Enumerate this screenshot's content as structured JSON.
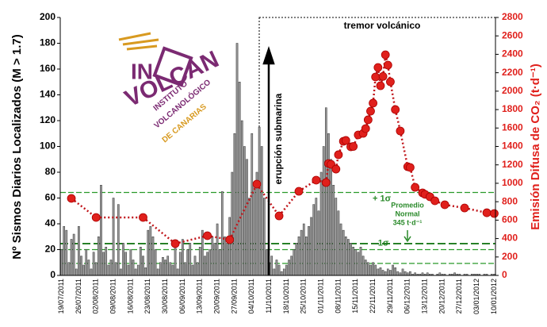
{
  "chart_data": {
    "type": "bar_line",
    "y_label": "Nº Sismos Diarios Localizados (M > 1.7)",
    "y2_label": "Emisión Difusa de CO₂ (t·d⁻¹)",
    "categories": [
      "19/07/2011",
      null,
      null,
      null,
      null,
      null,
      null,
      "26/07/2011",
      null,
      null,
      null,
      null,
      null,
      null,
      "02/08/2011",
      null,
      null,
      null,
      null,
      null,
      null,
      "09/08/2011",
      null,
      null,
      null,
      null,
      null,
      null,
      "16/08/2011",
      null,
      null,
      null,
      null,
      null,
      null,
      "23/08/2011",
      null,
      null,
      null,
      null,
      null,
      null,
      "30/08/2011",
      null,
      null,
      null,
      null,
      null,
      null,
      "06/09/2011",
      null,
      null,
      null,
      null,
      null,
      null,
      "13/09/2011",
      null,
      null,
      null,
      null,
      null,
      null,
      "20/09/2011",
      null,
      null,
      null,
      null,
      null,
      null,
      "27/09/2011",
      null,
      null,
      null,
      null,
      null,
      null,
      "04/10/2011",
      null,
      null,
      null,
      null,
      null,
      null,
      "11/10/2011",
      null,
      null,
      null,
      null,
      null,
      null,
      "18/10/2011",
      null,
      null,
      null,
      null,
      null,
      null,
      "25/10/2011",
      null,
      null,
      null,
      null,
      null,
      null,
      "01/11/2011",
      null,
      null,
      null,
      null,
      null,
      null,
      "08/11/2011",
      null,
      null,
      null,
      null,
      null,
      null,
      "15/11/2011",
      null,
      null,
      null,
      null,
      null,
      null,
      "22/11/2011",
      null,
      null,
      null,
      null,
      null,
      null,
      "29/11/2011",
      null,
      null,
      null,
      null,
      null,
      null,
      "06/12/2011",
      null,
      null,
      null,
      null,
      null,
      null,
      "13/12/2011",
      null,
      null,
      null,
      null,
      null,
      null,
      "20/12/2011",
      null,
      null,
      null,
      null,
      null,
      null,
      "27/12/2011",
      null,
      null,
      null,
      null,
      null,
      null,
      "03/01/2012",
      null,
      null,
      null,
      null,
      null,
      null,
      "10/01/2012"
    ],
    "series": [
      {
        "color": "#9a9a9a",
        "kind": "bar",
        "values": [
          20,
          38,
          35,
          10,
          28,
          32,
          5,
          38,
          15,
          8,
          20,
          12,
          5,
          18,
          10,
          30,
          70,
          18,
          22,
          8,
          12,
          60,
          10,
          55,
          5,
          25,
          18,
          8,
          20,
          12,
          5,
          8,
          22,
          15,
          6,
          35,
          38,
          30,
          20,
          5,
          10,
          14,
          12,
          15,
          10,
          8,
          22,
          5,
          18,
          28,
          10,
          20,
          25,
          8,
          15,
          10,
          22,
          35,
          15,
          18,
          20,
          30,
          25,
          40,
          20,
          65,
          30,
          25,
          45,
          80,
          110,
          180,
          150,
          120,
          100,
          90,
          60,
          110,
          70,
          80,
          115,
          100,
          60,
          20,
          10,
          15,
          5,
          12,
          8,
          3,
          5,
          8,
          12,
          15,
          20,
          25,
          30,
          35,
          40,
          30,
          38,
          45,
          55,
          60,
          50,
          80,
          100,
          130,
          110,
          90,
          70,
          60,
          50,
          40,
          35,
          30,
          28,
          25,
          22,
          20,
          18,
          22,
          15,
          12,
          10,
          8,
          10,
          8,
          5,
          6,
          4,
          3,
          5,
          4,
          8,
          6,
          3,
          2,
          5,
          3,
          2,
          3,
          1,
          2,
          1,
          1,
          2,
          1,
          2,
          1,
          1,
          0,
          1,
          2,
          1,
          1,
          0,
          1,
          1,
          2,
          1,
          1,
          0,
          1,
          1,
          0,
          1,
          1,
          1,
          1,
          0,
          1,
          1,
          0,
          1,
          1
        ]
      },
      {
        "color": "#e0201c",
        "kind": "line",
        "axis": "y2",
        "values": [
          null,
          null,
          null,
          null,
          836,
          null,
          null,
          null,
          null,
          null,
          null,
          null,
          null,
          null,
          629,
          null,
          null,
          null,
          null,
          null,
          null,
          null,
          null,
          null,
          null,
          null,
          null,
          null,
          null,
          null,
          null,
          null,
          null,
          629,
          null,
          null,
          null,
          null,
          null,
          null,
          null,
          null,
          null,
          null,
          null,
          null,
          345,
          null,
          null,
          null,
          null,
          null,
          null,
          null,
          null,
          null,
          null,
          null,
          null,
          431,
          null,
          null,
          null,
          null,
          null,
          null,
          null,
          null,
          388,
          null,
          null,
          null,
          null,
          null,
          null,
          null,
          null,
          null,
          null,
          991,
          null,
          null,
          null,
          null,
          null,
          null,
          null,
          null,
          646,
          null,
          null,
          null,
          null,
          null,
          null,
          null,
          913,
          null,
          null,
          null,
          null,
          null,
          null,
          1034,
          null,
          null,
          null,
          1008,
          1215,
          1206,
          null,
          1154,
          1310,
          null,
          1456,
          1465,
          null,
          1396,
          1400,
          null,
          1525,
          null,
          1542,
          1594,
          1689,
          1783,
          1870,
          2154,
          2257,
          2059,
          2160,
          2395,
          2283,
          2102,
          null,
          1800,
          null,
          1568,
          null,
          null,
          1180,
          1172,
          null,
          956,
          null,
          null,
          896,
          880,
          null,
          853,
          null,
          810,
          null,
          null,
          null,
          767,
          null,
          null,
          null,
          null,
          null,
          null,
          null,
          732,
          null,
          null,
          null,
          null,
          null,
          null,
          null,
          null,
          680,
          null,
          null,
          672
        ]
      }
    ],
    "ylim": [
      0,
      200
    ],
    "yticks": [
      0,
      20,
      40,
      60,
      80,
      100,
      120,
      140,
      160,
      180,
      200
    ],
    "y2lim": [
      0,
      2800
    ],
    "y2ticks": [
      0,
      200,
      400,
      600,
      800,
      1000,
      1200,
      1400,
      1600,
      1800,
      2000,
      2200,
      2400,
      2600,
      2800
    ],
    "reference_lines": [
      {
        "value": 900,
        "label": "+ 1σ"
      },
      {
        "value": 280,
        "label": "- 1σ"
      },
      {
        "value": 130
      }
    ],
    "mean_line": {
      "value": 345,
      "label": [
        "Promedio",
        "Normal",
        "345 t·d⁻¹"
      ]
    },
    "annotations": {
      "tremor": "tremor volcánico",
      "eruption": "erupción submarina"
    },
    "logo": {
      "in": "IN",
      "volcan": "VOLCAN",
      "instituto": "INSTITUTO",
      "volcanologico": "VOLCANOLÓGICO",
      "canarias": "DE CANARIAS"
    }
  }
}
